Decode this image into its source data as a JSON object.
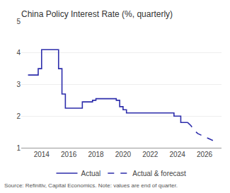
{
  "chart_data": {
    "type": "line",
    "title": "China Policy Interest Rate (%, quarterly)",
    "annotations": [
      "Source: Refinitiv, Capital Economics. Note: values are end of quarter."
    ],
    "series": [
      {
        "name": "Actual",
        "type": "step",
        "line_style": "solid",
        "color": "#2d2dab",
        "x": [
          2013.0,
          2013.25,
          2013.5,
          2013.75,
          2014.0,
          2014.25,
          2014.5,
          2014.75,
          2015.0,
          2015.25,
          2015.5,
          2015.75,
          2016.0,
          2016.25,
          2016.5,
          2016.75,
          2017.0,
          2017.25,
          2017.5,
          2017.75,
          2018.0,
          2018.25,
          2018.5,
          2018.75,
          2019.0,
          2019.25,
          2019.5,
          2019.75,
          2020.0,
          2020.25,
          2020.5,
          2020.75,
          2021.0,
          2021.25,
          2021.5,
          2021.75,
          2022.0,
          2022.25,
          2022.5,
          2022.75,
          2023.0,
          2023.25,
          2023.5,
          2023.75,
          2024.0,
          2024.25,
          2024.5,
          2024.75
        ],
        "values": [
          3.3,
          3.3,
          3.3,
          3.5,
          4.1,
          4.1,
          4.1,
          4.1,
          4.1,
          3.5,
          2.7,
          2.25,
          2.25,
          2.25,
          2.25,
          2.25,
          2.45,
          2.45,
          2.45,
          2.5,
          2.55,
          2.55,
          2.55,
          2.55,
          2.55,
          2.55,
          2.5,
          2.3,
          2.2,
          2.1,
          2.1,
          2.1,
          2.1,
          2.1,
          2.1,
          2.1,
          2.1,
          2.1,
          2.1,
          2.1,
          2.1,
          2.1,
          2.1,
          2.0,
          2.0,
          1.8,
          1.8,
          1.8
        ]
      },
      {
        "name": "Actual & forecast",
        "type": "line",
        "line_style": "dashed",
        "color": "#2d2dab",
        "x": [
          2024.75,
          2025.0,
          2025.25,
          2025.5,
          2025.75,
          2026.0,
          2026.25,
          2026.5,
          2026.75
        ],
        "values": [
          1.8,
          1.7,
          1.55,
          1.45,
          1.4,
          1.35,
          1.3,
          1.25,
          1.2
        ]
      }
    ],
    "xlim": [
      2012.5,
      2027.25
    ],
    "xticks": [
      2014,
      2016,
      2018,
      2020,
      2022,
      2024,
      2026
    ],
    "ylim": [
      1,
      5
    ],
    "yticks": [
      1,
      2,
      3,
      4,
      5
    ],
    "grid": "y",
    "legend": "bottom"
  }
}
